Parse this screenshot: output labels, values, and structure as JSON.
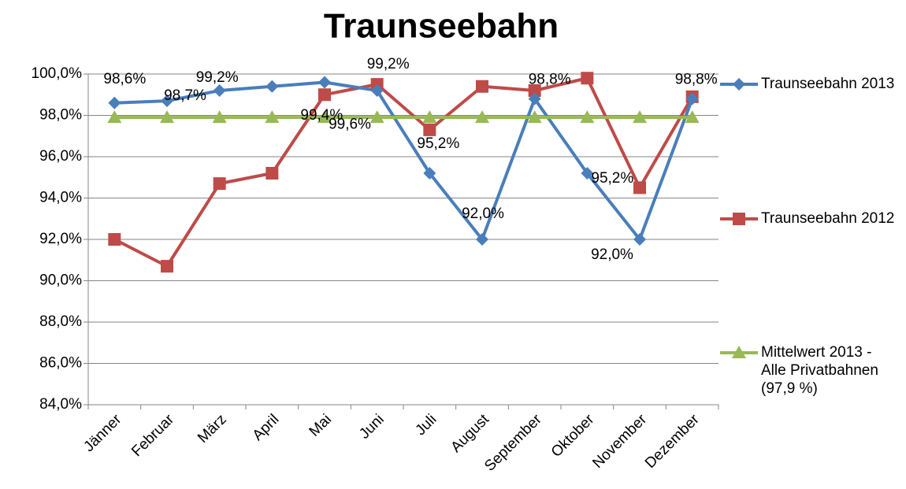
{
  "chart_data": {
    "type": "line",
    "title": "Traunseebahn",
    "categories": [
      "Jänner",
      "Februar",
      "März",
      "April",
      "Mai",
      "Juni",
      "Juli",
      "August",
      "September",
      "Oktober",
      "November",
      "Dezember"
    ],
    "series": [
      {
        "name": "Traunseebahn 2013",
        "color": "#4a7ebb",
        "marker": "diamond",
        "values": [
          98.6,
          98.7,
          99.2,
          99.4,
          99.6,
          99.2,
          95.2,
          92.0,
          98.8,
          95.2,
          92.0,
          98.8
        ],
        "value_labels": [
          "98,6%",
          "98,7%",
          "99,2%",
          "99,4%",
          "99,6%",
          "99,2%",
          "95,2%",
          "92,0%",
          "98,8%",
          "95,2%",
          "92,0%",
          "98,8%"
        ]
      },
      {
        "name": "Traunseebahn 2012",
        "color": "#be4b48",
        "marker": "square",
        "values": [
          92.0,
          90.7,
          94.7,
          95.2,
          99.0,
          99.5,
          97.3,
          99.4,
          99.2,
          99.8,
          94.5,
          98.9
        ]
      },
      {
        "name": "Mittelwert 2013 - Alle Privatbahnen (97,9 %)",
        "color": "#98b954",
        "marker": "triangle",
        "values": [
          97.9,
          97.9,
          97.9,
          97.9,
          97.9,
          97.9,
          97.9,
          97.9,
          97.9,
          97.9,
          97.9,
          97.9
        ]
      }
    ],
    "ylim": [
      84,
      100
    ],
    "yticks": [
      {
        "value": 84,
        "label": "84,0%"
      },
      {
        "value": 86,
        "label": "86,0%"
      },
      {
        "value": 88,
        "label": "88,0%"
      },
      {
        "value": 90,
        "label": "90,0%"
      },
      {
        "value": 92,
        "label": "92,0%"
      },
      {
        "value": 94,
        "label": "94,0%"
      },
      {
        "value": 96,
        "label": "96,0%"
      },
      {
        "value": 98,
        "label": "98,0%"
      },
      {
        "value": 100,
        "label": "100,0%"
      }
    ],
    "grid": true,
    "legend": "right"
  }
}
